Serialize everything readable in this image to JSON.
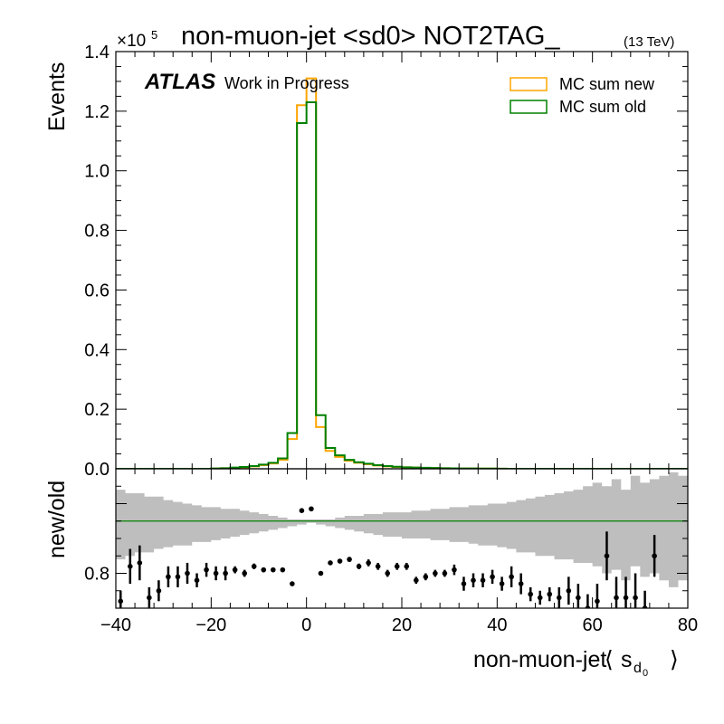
{
  "chart_data": [
    {
      "type": "line",
      "title": "non-muon-jet <sd0> NOT2TAG_",
      "title_suffix": "(13 TeV)",
      "ylabel": "Events",
      "y_multiplier": "×10",
      "y_multiplier_exp": "5",
      "atlas_label": "ATLAS",
      "atlas_sublabel": "Work in Progress",
      "legend_position": "top-right",
      "xlim": [
        -40,
        80
      ],
      "ylim": [
        0,
        1.4
      ],
      "x_ticks": [
        "−40",
        "−20",
        "0",
        "20",
        "40",
        "60",
        "80"
      ],
      "y_ticks": [
        "0.0",
        "0.2",
        "0.4",
        "0.6",
        "0.8",
        "1.0",
        "1.2",
        "1.4"
      ],
      "bin_edges": [
        -40,
        -38,
        -36,
        -34,
        -32,
        -30,
        -28,
        -26,
        -24,
        -22,
        -20,
        -18,
        -16,
        -14,
        -12,
        -10,
        -8,
        -6,
        -4,
        -2,
        0,
        2,
        4,
        6,
        8,
        10,
        12,
        14,
        16,
        18,
        20,
        22,
        24,
        26,
        28,
        30,
        32,
        34,
        36,
        38,
        40,
        42,
        44,
        46,
        48,
        50,
        52,
        54,
        56,
        58,
        60,
        62,
        64,
        66,
        68,
        70,
        72,
        74,
        76,
        78,
        80
      ],
      "series": [
        {
          "name": "MC sum new",
          "color": "#ffa500",
          "values": [
            0,
            0,
            0,
            0,
            0,
            0,
            0,
            0,
            0,
            0,
            0.001,
            0.002,
            0.003,
            0.005,
            0.008,
            0.012,
            0.018,
            0.03,
            0.1,
            1.22,
            1.31,
            0.14,
            0.06,
            0.04,
            0.027,
            0.02,
            0.015,
            0.011,
            0.008,
            0.006,
            0.005,
            0.004,
            0.003,
            0.0025,
            0.002,
            0.0015,
            0.0012,
            0.001,
            0.0008,
            0.0006,
            0.0004,
            0,
            0,
            0,
            0,
            0,
            0,
            0,
            0,
            0,
            0,
            0,
            0,
            0,
            0,
            0,
            0,
            0,
            0,
            0
          ]
        },
        {
          "name": "MC sum old",
          "color": "#008000",
          "values": [
            0,
            0,
            0,
            0,
            0,
            0,
            0,
            0,
            0,
            0,
            0.001,
            0.002,
            0.004,
            0.006,
            0.009,
            0.014,
            0.02,
            0.035,
            0.12,
            1.16,
            1.23,
            0.18,
            0.07,
            0.045,
            0.03,
            0.022,
            0.017,
            0.012,
            0.009,
            0.007,
            0.005,
            0.004,
            0.0035,
            0.0028,
            0.002,
            0.0017,
            0.0013,
            0.001,
            0.0008,
            0.0006,
            0.0004,
            0,
            0,
            0,
            0,
            0,
            0,
            0,
            0,
            0,
            0,
            0,
            0,
            0,
            0,
            0,
            0,
            0,
            0,
            0
          ]
        }
      ]
    },
    {
      "type": "scatter",
      "ylabel": "new/old",
      "xlabel_main": "non-muon-jet",
      "xlabel_sym": "s",
      "xlabel_sub": "d",
      "xlabel_subsub": "0",
      "xlim": [
        -40,
        80
      ],
      "ylim": [
        0.7,
        1.1
      ],
      "y_ticks": [
        "0.8"
      ],
      "reference_line": 0.95,
      "reference_color": "#008000",
      "band_color": "#bebebe",
      "band": {
        "x": [
          -40,
          -38,
          -36,
          -34,
          -32,
          -30,
          -28,
          -26,
          -24,
          -22,
          -20,
          -18,
          -16,
          -14,
          -12,
          -10,
          -8,
          -6,
          -4,
          -2,
          0,
          2,
          4,
          6,
          8,
          10,
          12,
          14,
          16,
          18,
          20,
          22,
          24,
          26,
          28,
          30,
          32,
          34,
          36,
          38,
          40,
          42,
          44,
          46,
          48,
          50,
          52,
          54,
          56,
          58,
          60,
          62,
          64,
          66,
          68,
          70,
          72,
          74,
          76,
          78
        ],
        "low": [
          0.84,
          0.85,
          0.86,
          0.86,
          0.87,
          0.875,
          0.88,
          0.88,
          0.89,
          0.89,
          0.895,
          0.9,
          0.905,
          0.91,
          0.915,
          0.92,
          0.925,
          0.93,
          0.935,
          0.94,
          0.945,
          0.94,
          0.935,
          0.93,
          0.925,
          0.92,
          0.915,
          0.91,
          0.905,
          0.905,
          0.9,
          0.9,
          0.9,
          0.895,
          0.895,
          0.89,
          0.89,
          0.885,
          0.88,
          0.88,
          0.875,
          0.87,
          0.86,
          0.86,
          0.85,
          0.85,
          0.84,
          0.84,
          0.83,
          0.83,
          0.82,
          0.8,
          0.81,
          0.78,
          0.82,
          0.79,
          0.8,
          0.78,
          0.76,
          0.78
        ],
        "high": [
          1.04,
          1.03,
          1.03,
          1.02,
          1.02,
          1.01,
          1.005,
          1.0,
          0.995,
          0.99,
          0.99,
          0.985,
          0.985,
          0.98,
          0.975,
          0.97,
          0.965,
          0.96,
          0.955,
          0.955,
          0.955,
          0.955,
          0.955,
          0.96,
          0.965,
          0.965,
          0.97,
          0.97,
          0.975,
          0.975,
          0.975,
          0.98,
          0.98,
          0.985,
          0.985,
          0.99,
          0.99,
          0.995,
          0.995,
          1.0,
          1.0,
          1.005,
          1.01,
          1.015,
          1.02,
          1.025,
          1.03,
          1.035,
          1.04,
          1.05,
          1.06,
          1.05,
          1.07,
          1.04,
          1.08,
          1.06,
          1.07,
          1.08,
          1.09,
          1.08
        ]
      },
      "points": [
        {
          "x": -39,
          "y": 0.72,
          "err": 0.03
        },
        {
          "x": -37,
          "y": 0.82,
          "err": 0.05
        },
        {
          "x": -35,
          "y": 0.83,
          "err": 0.05
        },
        {
          "x": -33,
          "y": 0.73,
          "err": 0.03
        },
        {
          "x": -31,
          "y": 0.75,
          "err": 0.03
        },
        {
          "x": -29,
          "y": 0.79,
          "err": 0.03
        },
        {
          "x": -27,
          "y": 0.79,
          "err": 0.03
        },
        {
          "x": -25,
          "y": 0.8,
          "err": 0.03
        },
        {
          "x": -23,
          "y": 0.78,
          "err": 0.02
        },
        {
          "x": -21,
          "y": 0.81,
          "err": 0.02
        },
        {
          "x": -19,
          "y": 0.8,
          "err": 0.02
        },
        {
          "x": -17,
          "y": 0.8,
          "err": 0.02
        },
        {
          "x": -15,
          "y": 0.81,
          "err": 0.01
        },
        {
          "x": -13,
          "y": 0.8,
          "err": 0.01
        },
        {
          "x": -11,
          "y": 0.82,
          "err": 0.008
        },
        {
          "x": -9,
          "y": 0.81,
          "err": 0.007
        },
        {
          "x": -7,
          "y": 0.81,
          "err": 0.006
        },
        {
          "x": -5,
          "y": 0.81,
          "err": 0.005
        },
        {
          "x": -3,
          "y": 0.77,
          "err": 0.003
        },
        {
          "x": -1,
          "y": 0.98,
          "err": 0.002
        },
        {
          "x": 1,
          "y": 0.985,
          "err": 0.002
        },
        {
          "x": 3,
          "y": 0.8,
          "err": 0.003
        },
        {
          "x": 5,
          "y": 0.83,
          "err": 0.005
        },
        {
          "x": 7,
          "y": 0.835,
          "err": 0.006
        },
        {
          "x": 9,
          "y": 0.84,
          "err": 0.007
        },
        {
          "x": 11,
          "y": 0.82,
          "err": 0.008
        },
        {
          "x": 13,
          "y": 0.83,
          "err": 0.01
        },
        {
          "x": 15,
          "y": 0.82,
          "err": 0.01
        },
        {
          "x": 17,
          "y": 0.8,
          "err": 0.01
        },
        {
          "x": 19,
          "y": 0.82,
          "err": 0.01
        },
        {
          "x": 21,
          "y": 0.82,
          "err": 0.01
        },
        {
          "x": 23,
          "y": 0.78,
          "err": 0.01
        },
        {
          "x": 25,
          "y": 0.79,
          "err": 0.01
        },
        {
          "x": 27,
          "y": 0.8,
          "err": 0.01
        },
        {
          "x": 29,
          "y": 0.8,
          "err": 0.01
        },
        {
          "x": 31,
          "y": 0.81,
          "err": 0.015
        },
        {
          "x": 33,
          "y": 0.77,
          "err": 0.02
        },
        {
          "x": 35,
          "y": 0.78,
          "err": 0.02
        },
        {
          "x": 37,
          "y": 0.78,
          "err": 0.02
        },
        {
          "x": 39,
          "y": 0.79,
          "err": 0.02
        },
        {
          "x": 41,
          "y": 0.77,
          "err": 0.02
        },
        {
          "x": 43,
          "y": 0.79,
          "err": 0.03
        },
        {
          "x": 45,
          "y": 0.77,
          "err": 0.03
        },
        {
          "x": 47,
          "y": 0.74,
          "err": 0.02
        },
        {
          "x": 49,
          "y": 0.73,
          "err": 0.02
        },
        {
          "x": 51,
          "y": 0.74,
          "err": 0.02
        },
        {
          "x": 53,
          "y": 0.73,
          "err": 0.03
        },
        {
          "x": 55,
          "y": 0.75,
          "err": 0.04
        },
        {
          "x": 57,
          "y": 0.73,
          "err": 0.04
        },
        {
          "x": 59,
          "y": 0.7,
          "err": 0.04
        },
        {
          "x": 61,
          "y": 0.72,
          "err": 0.05
        },
        {
          "x": 63,
          "y": 0.85,
          "err": 0.07
        },
        {
          "x": 65,
          "y": 0.73,
          "err": 0.06
        },
        {
          "x": 67,
          "y": 0.73,
          "err": 0.06
        },
        {
          "x": 69,
          "y": 0.73,
          "err": 0.07
        },
        {
          "x": 71,
          "y": 0.7,
          "err": 0.05
        },
        {
          "x": 73,
          "y": 0.85,
          "err": 0.06
        }
      ]
    }
  ]
}
